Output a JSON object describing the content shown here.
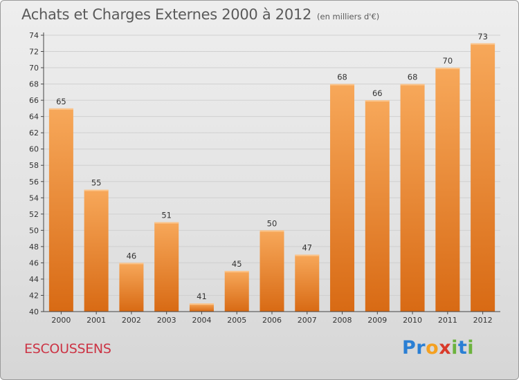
{
  "header": {
    "title": "Achats et Charges Externes 2000 à 2012",
    "subtitle": "(en milliers d'€)"
  },
  "footer": {
    "commune": "ESCOUSSENS",
    "logo_letters": [
      {
        "char": "P",
        "color": "#2a7fd4"
      },
      {
        "char": "r",
        "color": "#2a7fd4"
      },
      {
        "char": "o",
        "color": "#f4a020"
      },
      {
        "char": "x",
        "color": "#d93a2a"
      },
      {
        "char": "i",
        "color": "#6cb33e"
      },
      {
        "char": "t",
        "color": "#2a7fd4"
      },
      {
        "char": "i",
        "color": "#6cb33e"
      }
    ]
  },
  "colors": {
    "bar_light": "#f7a85a",
    "bar_dark": "#d86a14",
    "grid": "#d0d0d0",
    "axis": "#444444"
  },
  "chart_data": {
    "type": "bar",
    "title": "Achats et Charges Externes 2000 à 2012",
    "subtitle": "(en milliers d'€)",
    "categories": [
      "2000",
      "2001",
      "2002",
      "2003",
      "2004",
      "2005",
      "2006",
      "2007",
      "2008",
      "2009",
      "2010",
      "2011",
      "2012"
    ],
    "values": [
      65,
      55,
      46,
      51,
      41,
      45,
      50,
      47,
      68,
      66,
      68,
      70,
      73
    ],
    "ylim": [
      40,
      74
    ],
    "yticks": [
      40,
      42,
      44,
      46,
      48,
      50,
      52,
      54,
      56,
      58,
      60,
      62,
      64,
      66,
      68,
      70,
      72,
      74
    ],
    "grid": true,
    "data_labels": true
  }
}
